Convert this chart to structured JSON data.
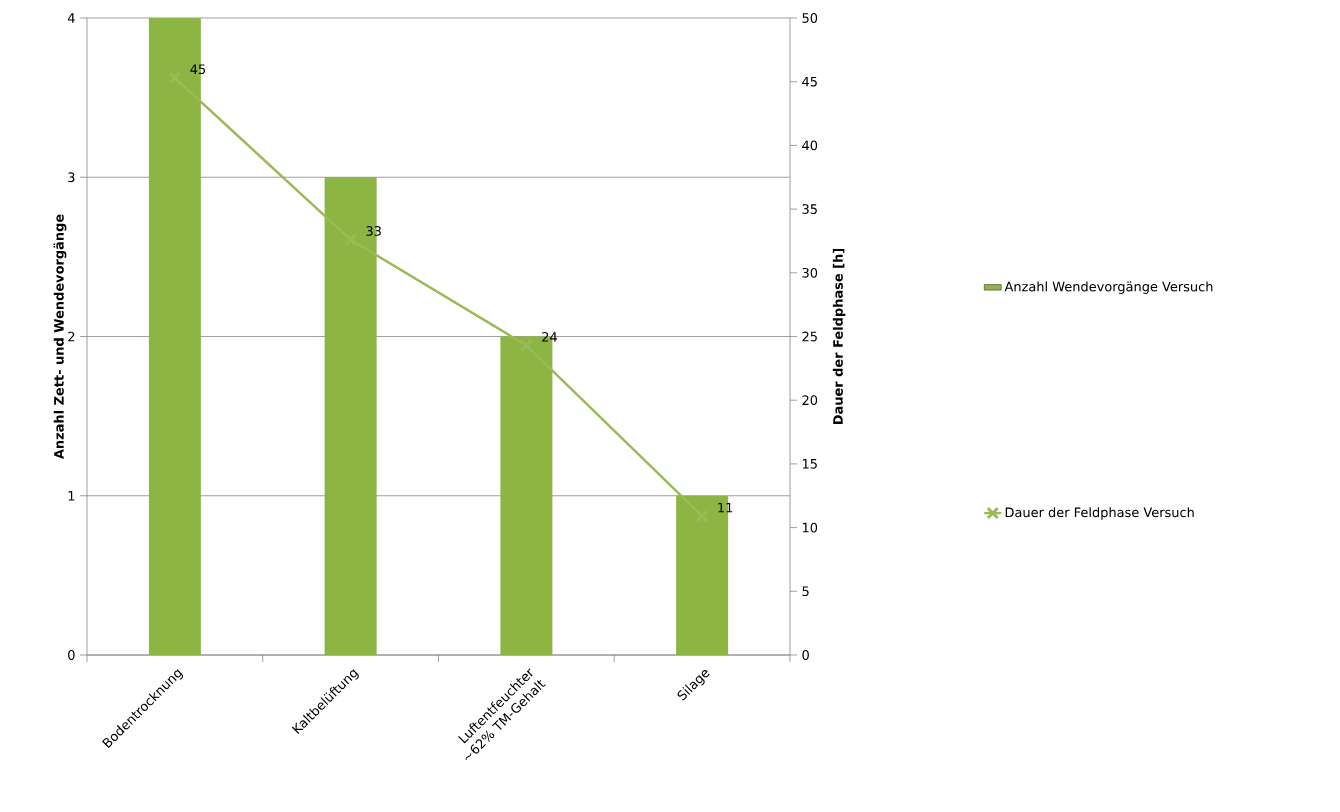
{
  "chart_data": {
    "type": "bar",
    "categories": [
      "Bodentrocknung",
      "Kaltbelüftung",
      "Luftentfeuchter ~62% TM-Gehalt",
      "Silage"
    ],
    "ylabel": "Anzahl Zett- und Wendevorgänge",
    "y2label": "Dauer der Feldphase [h]",
    "ylim": [
      0,
      4
    ],
    "yticks": [
      0,
      1,
      2,
      3,
      4
    ],
    "y2lim": [
      0,
      50
    ],
    "y2ticks": [
      0,
      5,
      10,
      15,
      20,
      25,
      30,
      35,
      40,
      45,
      50
    ],
    "grid": "y",
    "legend": "right",
    "marker": "cross",
    "series": [
      {
        "name": "Anzahl Wendevorgänge Versuch",
        "color": "#8db543",
        "values": [
          4,
          3,
          2,
          1
        ]
      },
      {
        "name": "Dauer der Feldphase Versuch",
        "type": "line",
        "axis": "y2",
        "color": "#9bbb59",
        "values": [
          45.3,
          32.6,
          24.3,
          10.9
        ],
        "value_labels": [
          "45",
          "33",
          "24",
          "11"
        ]
      }
    ]
  }
}
